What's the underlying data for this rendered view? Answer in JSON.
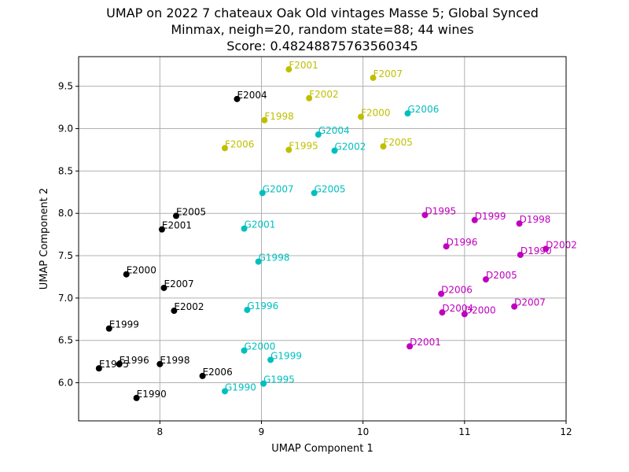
{
  "chart_data": {
    "type": "scatter",
    "title_lines": [
      "UMAP on 2022 7 chateaux Oak Old vintages Masse 5; Global Synced",
      "Minmax, neigh=20, random state=88; 44 wines",
      "Score: 0.48248875763560345"
    ],
    "xlabel": "UMAP Component 1",
    "ylabel": "UMAP Component 2",
    "xlim": [
      7.2,
      12.0
    ],
    "ylim": [
      5.55,
      9.85
    ],
    "xticks": [
      8,
      9,
      10,
      11,
      12
    ],
    "yticks": [
      6.0,
      6.5,
      7.0,
      7.5,
      8.0,
      8.5,
      9.0,
      9.5
    ],
    "grid": true,
    "colors": {
      "black": "#000000",
      "yellow": "#bfbf00",
      "cyan": "#00bfbf",
      "magenta": "#bf00bf"
    },
    "points": [
      {
        "label": "E2004",
        "x": 8.76,
        "y": 9.35,
        "color": "black"
      },
      {
        "label": "E2005",
        "x": 8.16,
        "y": 7.97,
        "color": "black"
      },
      {
        "label": "E2001",
        "x": 8.02,
        "y": 7.81,
        "color": "black"
      },
      {
        "label": "E2000",
        "x": 7.67,
        "y": 7.28,
        "color": "black"
      },
      {
        "label": "E2007",
        "x": 8.04,
        "y": 7.12,
        "color": "black"
      },
      {
        "label": "E2002",
        "x": 8.14,
        "y": 6.85,
        "color": "black"
      },
      {
        "label": "E1999",
        "x": 7.5,
        "y": 6.64,
        "color": "black"
      },
      {
        "label": "E1996",
        "x": 7.6,
        "y": 6.22,
        "color": "black"
      },
      {
        "label": "E1998",
        "x": 8.0,
        "y": 6.22,
        "color": "black"
      },
      {
        "label": "E1995",
        "x": 7.4,
        "y": 6.17,
        "color": "black"
      },
      {
        "label": "E2006",
        "x": 8.42,
        "y": 6.08,
        "color": "black"
      },
      {
        "label": "E1990",
        "x": 7.77,
        "y": 5.82,
        "color": "black"
      },
      {
        "label": "F2001",
        "x": 9.27,
        "y": 9.7,
        "color": "yellow"
      },
      {
        "label": "F2007",
        "x": 10.1,
        "y": 9.6,
        "color": "yellow"
      },
      {
        "label": "F2002",
        "x": 9.47,
        "y": 9.36,
        "color": "yellow"
      },
      {
        "label": "F2000",
        "x": 9.98,
        "y": 9.14,
        "color": "yellow"
      },
      {
        "label": "F1998",
        "x": 9.03,
        "y": 9.1,
        "color": "yellow"
      },
      {
        "label": "F2006",
        "x": 8.64,
        "y": 8.77,
        "color": "yellow"
      },
      {
        "label": "F1995",
        "x": 9.27,
        "y": 8.75,
        "color": "yellow"
      },
      {
        "label": "F2005",
        "x": 10.2,
        "y": 8.79,
        "color": "yellow"
      },
      {
        "label": "G2006",
        "x": 10.44,
        "y": 9.18,
        "color": "cyan"
      },
      {
        "label": "G2004",
        "x": 9.56,
        "y": 8.93,
        "color": "cyan"
      },
      {
        "label": "G2002",
        "x": 9.72,
        "y": 8.74,
        "color": "cyan"
      },
      {
        "label": "G2007",
        "x": 9.01,
        "y": 8.24,
        "color": "cyan"
      },
      {
        "label": "G2005",
        "x": 9.52,
        "y": 8.24,
        "color": "cyan"
      },
      {
        "label": "G2001",
        "x": 8.83,
        "y": 7.82,
        "color": "cyan"
      },
      {
        "label": "G1998",
        "x": 8.97,
        "y": 7.43,
        "color": "cyan"
      },
      {
        "label": "G1996",
        "x": 8.86,
        "y": 6.86,
        "color": "cyan"
      },
      {
        "label": "G2000",
        "x": 8.83,
        "y": 6.38,
        "color": "cyan"
      },
      {
        "label": "G1999",
        "x": 9.09,
        "y": 6.27,
        "color": "cyan"
      },
      {
        "label": "G1995",
        "x": 9.02,
        "y": 5.99,
        "color": "cyan"
      },
      {
        "label": "G1990",
        "x": 8.64,
        "y": 5.9,
        "color": "cyan"
      },
      {
        "label": "D1995",
        "x": 10.61,
        "y": 7.98,
        "color": "magenta"
      },
      {
        "label": "D1999",
        "x": 11.1,
        "y": 7.92,
        "color": "magenta"
      },
      {
        "label": "D1998",
        "x": 11.54,
        "y": 7.88,
        "color": "magenta"
      },
      {
        "label": "D1996",
        "x": 10.82,
        "y": 7.61,
        "color": "magenta"
      },
      {
        "label": "D2002",
        "x": 11.8,
        "y": 7.58,
        "color": "magenta"
      },
      {
        "label": "D1990",
        "x": 11.55,
        "y": 7.51,
        "color": "magenta"
      },
      {
        "label": "D2005",
        "x": 11.21,
        "y": 7.22,
        "color": "magenta"
      },
      {
        "label": "D2006",
        "x": 10.77,
        "y": 7.05,
        "color": "magenta"
      },
      {
        "label": "D2007",
        "x": 11.49,
        "y": 6.9,
        "color": "magenta"
      },
      {
        "label": "D2004",
        "x": 10.78,
        "y": 6.83,
        "color": "magenta"
      },
      {
        "label": "D2000",
        "x": 11.0,
        "y": 6.81,
        "color": "magenta"
      },
      {
        "label": "D2001",
        "x": 10.46,
        "y": 6.43,
        "color": "magenta"
      }
    ]
  }
}
